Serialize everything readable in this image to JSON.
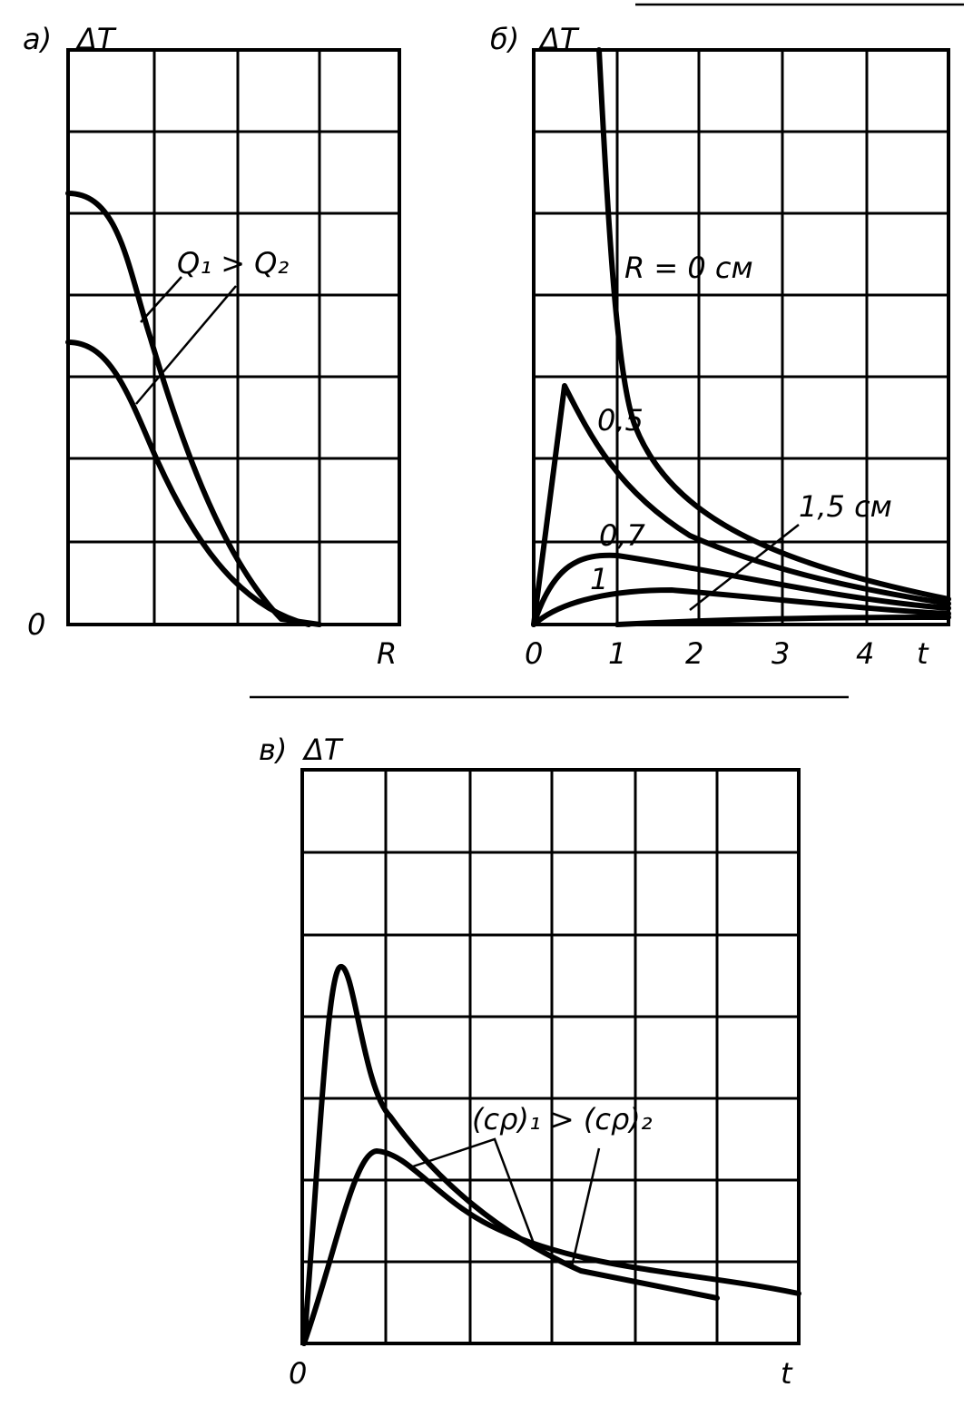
{
  "panels": [
    {
      "label": "а)",
      "y_label": "ΔT",
      "origin": "0",
      "x_label": "R",
      "annotation": "Q₁ > Q₂"
    },
    {
      "label": "б)",
      "y_label": "ΔT",
      "x_ticks": [
        "0",
        "1",
        "2",
        "3",
        "4"
      ],
      "x_label": "t",
      "curve_labels": [
        "R = 0 см",
        "0,5",
        "0,7",
        "1",
        "1,5 см"
      ]
    },
    {
      "label": "в)",
      "y_label": "ΔT",
      "origin": "0",
      "x_label": "t",
      "annotation": "(cρ)₁ > (cρ)₂"
    }
  ]
}
